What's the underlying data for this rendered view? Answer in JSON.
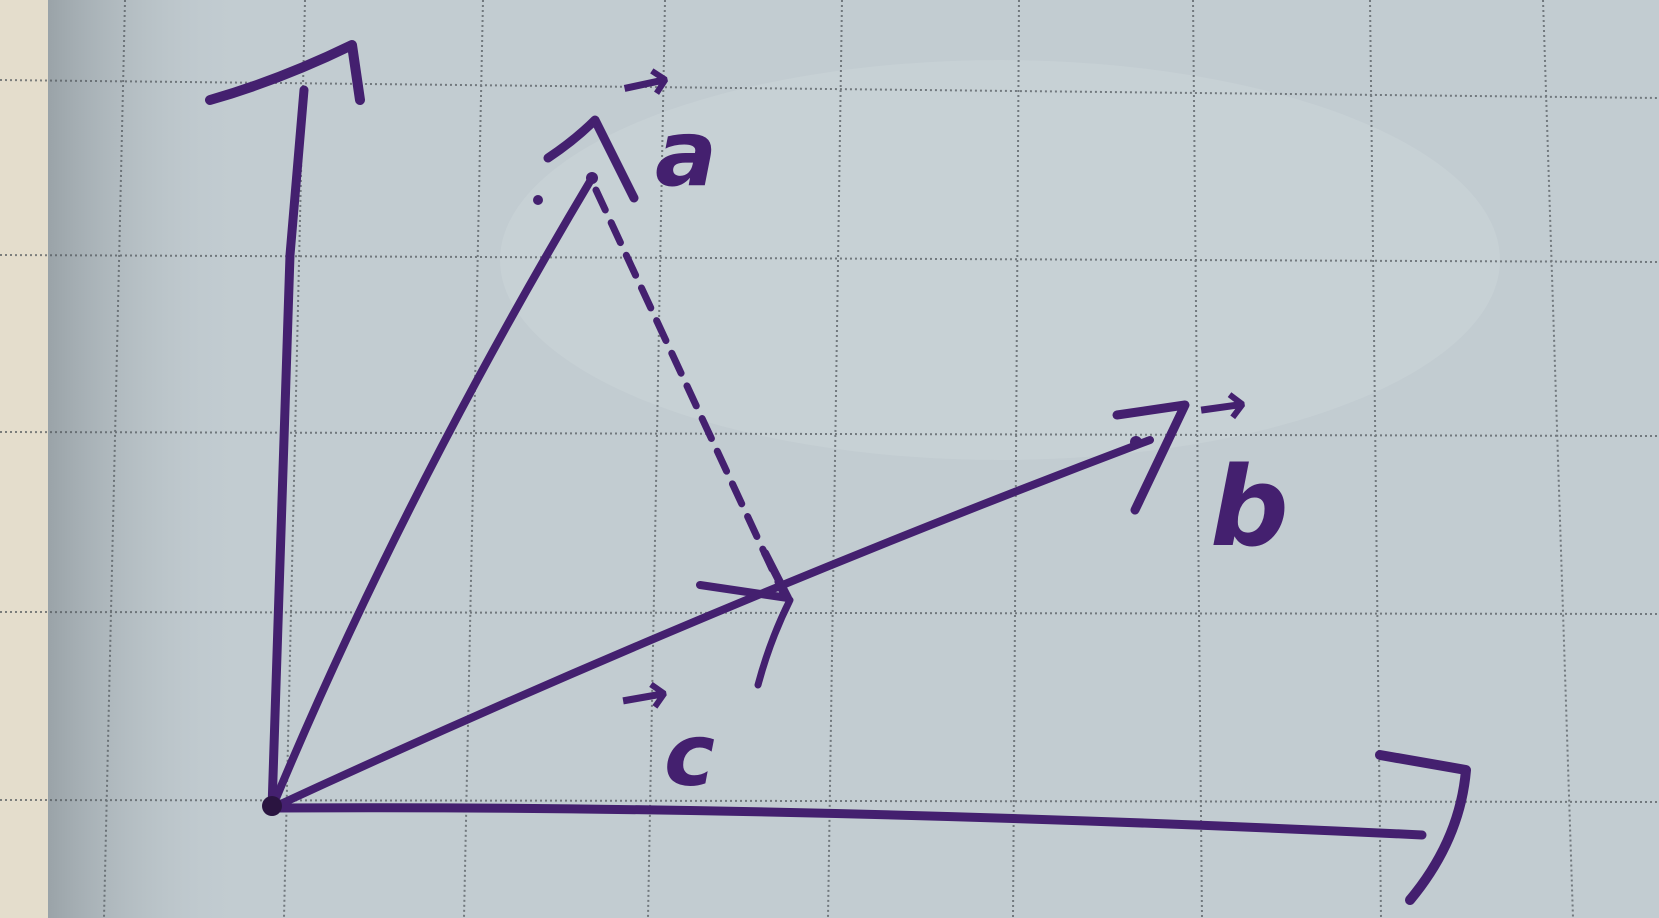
{
  "colors": {
    "paper": "#c2ccd1",
    "paper_light": "#d2dadd",
    "table": "#e4ddcc",
    "grid": "#4f555a",
    "ink": "#44206f"
  },
  "diagram": {
    "kind": "vector-projection-sketch",
    "vectors": [
      {
        "id": "a",
        "label": "a",
        "label_prefix": "→",
        "style": "solid"
      },
      {
        "id": "b",
        "label": "b",
        "label_prefix": "→",
        "style": "solid"
      },
      {
        "id": "c",
        "label": "c",
        "label_prefix": "→",
        "style": "solid"
      }
    ],
    "projection": {
      "from": "a",
      "onto": "b",
      "style": "dashed"
    },
    "right_angle_marker": true,
    "axes": {
      "count": 2,
      "labels": [
        "",
        ""
      ]
    }
  }
}
